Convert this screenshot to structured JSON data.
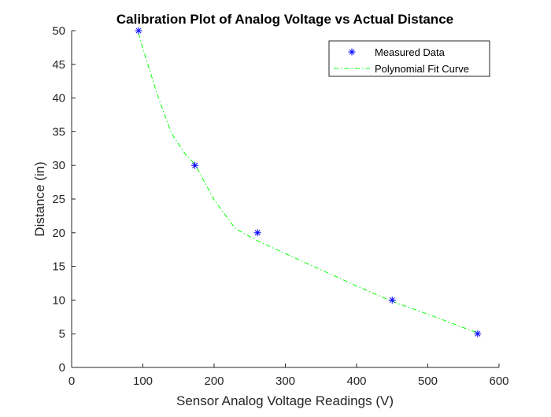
{
  "chart_data": {
    "type": "scatter",
    "title": "Calibration Plot of Analog Voltage vs Actual Distance",
    "xlabel": "Sensor Analog Voltage Readings (V)",
    "ylabel": "Distance (in)",
    "xlim": [
      0,
      600
    ],
    "ylim": [
      0,
      50
    ],
    "xticks": [
      0,
      100,
      200,
      300,
      400,
      500,
      600
    ],
    "yticks": [
      0,
      5,
      10,
      15,
      20,
      25,
      30,
      35,
      40,
      45,
      50
    ],
    "grid": false,
    "legend_position": "top-right",
    "series": [
      {
        "name": "Measured Data",
        "style": "markers",
        "marker": "asterisk",
        "color": "#0000ff",
        "x": [
          94,
          173,
          261,
          450,
          570
        ],
        "y": [
          50,
          30,
          20,
          10,
          5
        ]
      },
      {
        "name": "Polynomial Fit Curve",
        "style": "dash-dot-line",
        "color": "#00ff00",
        "x": [
          94,
          100,
          120,
          140,
          160,
          173,
          200,
          230,
          261,
          300,
          350,
          400,
          450,
          500,
          570
        ],
        "y": [
          49.6,
          47.4,
          40.6,
          34.8,
          31.6,
          30.2,
          24.9,
          20.6,
          18.8,
          16.9,
          14.5,
          12.1,
          9.8,
          7.9,
          5.1
        ]
      }
    ]
  }
}
